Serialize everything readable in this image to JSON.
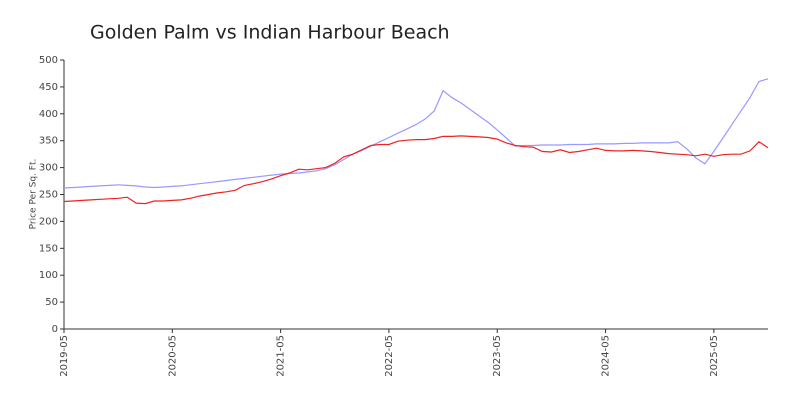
{
  "chart_data": {
    "type": "line",
    "title": "Golden Palm vs Indian Harbour Beach",
    "y_label": "Price Per Sq. Ft.",
    "x": [
      "2019-05",
      "2019-06",
      "2019-07",
      "2019-08",
      "2019-09",
      "2019-10",
      "2019-11",
      "2019-12",
      "2020-01",
      "2020-02",
      "2020-03",
      "2020-04",
      "2020-05",
      "2020-06",
      "2020-07",
      "2020-08",
      "2020-09",
      "2020-10",
      "2020-11",
      "2020-12",
      "2021-01",
      "2021-02",
      "2021-03",
      "2021-04",
      "2021-05",
      "2021-06",
      "2021-07",
      "2021-08",
      "2021-09",
      "2021-10",
      "2021-11",
      "2021-12",
      "2022-01",
      "2022-02",
      "2022-03",
      "2022-04",
      "2022-05",
      "2022-06",
      "2022-07",
      "2022-08",
      "2022-09",
      "2022-10",
      "2022-11",
      "2022-12",
      "2023-01",
      "2023-02",
      "2023-03",
      "2023-04",
      "2023-05",
      "2023-06",
      "2023-07",
      "2023-08",
      "2023-09",
      "2023-10",
      "2023-11",
      "2023-12",
      "2024-01",
      "2024-02",
      "2024-03",
      "2024-04",
      "2024-05",
      "2024-06",
      "2024-07",
      "2024-08",
      "2024-09",
      "2024-10",
      "2024-11",
      "2024-12",
      "2025-01",
      "2025-02",
      "2025-03",
      "2025-04",
      "2025-05",
      "2025-06",
      "2025-07",
      "2025-08",
      "2025-09",
      "2025-10",
      "2025-11"
    ],
    "xticks": [
      "2019-05",
      "2020-05",
      "2021-05",
      "2022-05",
      "2023-05",
      "2024-05",
      "2025-05"
    ],
    "series": [
      {
        "color": "#9999ff",
        "values": [
          262,
          263,
          264,
          265,
          266,
          267,
          268,
          267,
          266,
          264,
          263,
          264,
          265,
          266,
          268,
          270,
          272,
          274,
          276,
          278,
          280,
          282,
          284,
          286,
          288,
          289,
          290,
          292,
          294,
          298,
          305,
          315,
          325,
          332,
          340,
          348,
          356,
          364,
          372,
          380,
          390,
          405,
          443,
          430,
          420,
          408,
          396,
          384,
          370,
          355,
          340,
          341,
          341,
          342,
          342,
          342,
          343,
          343,
          343,
          344,
          344,
          344,
          345,
          345,
          346,
          346,
          346,
          346,
          348,
          335,
          318,
          307,
          330,
          355,
          380,
          405,
          430,
          460,
          465
        ]
      },
      {
        "color": "#ee2222",
        "values": [
          237,
          238,
          239,
          240,
          241,
          242,
          243,
          245,
          234,
          233,
          238,
          238,
          239,
          240,
          243,
          247,
          250,
          253,
          255,
          258,
          267,
          270,
          274,
          279,
          285,
          290,
          297,
          296,
          298,
          300,
          308,
          320,
          325,
          333,
          341,
          343,
          343,
          349,
          351,
          352,
          352,
          354,
          358,
          358,
          359,
          358,
          357,
          356,
          353,
          346,
          341,
          339,
          338,
          330,
          329,
          333,
          328,
          330,
          333,
          336,
          332,
          331,
          331,
          332,
          331,
          330,
          328,
          326,
          325,
          324,
          322,
          325,
          321,
          324,
          325,
          325,
          331,
          348,
          337
        ]
      }
    ],
    "ylim": [
      0,
      500
    ],
    "yticks": [
      0,
      50,
      100,
      150,
      200,
      250,
      300,
      350,
      400,
      450,
      500
    ]
  }
}
